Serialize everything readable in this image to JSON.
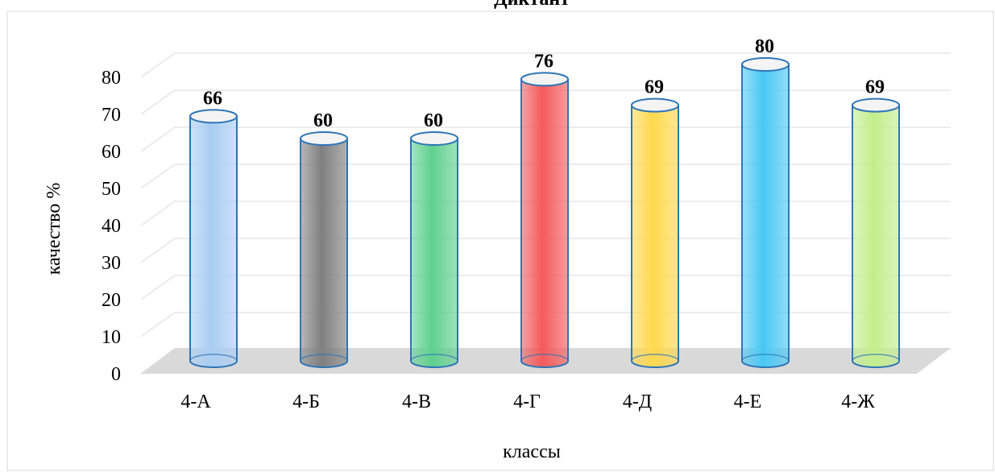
{
  "chart_data": {
    "type": "bar",
    "style": "3d-cylinder",
    "title": "Диктант",
    "xlabel": "классы",
    "ylabel": "качество %",
    "categories": [
      "4-А",
      "4-Б",
      "4-В",
      "4-Г",
      "4-Д",
      "4-Е",
      "4-Ж"
    ],
    "values": [
      66,
      60,
      60,
      76,
      69,
      80,
      69
    ],
    "data_labels": [
      "66",
      "60",
      "60",
      "76",
      "69",
      "80",
      "69"
    ],
    "colors": [
      "#a9cdf3",
      "#7f7f7f",
      "#5fd08e",
      "#f45a5a",
      "#ffd84d",
      "#48c8f5",
      "#c3ee8c"
    ],
    "ylim": [
      0,
      80
    ],
    "yticks": [
      "0",
      "10",
      "20",
      "30",
      "40",
      "50",
      "60",
      "70",
      "80"
    ],
    "grid": true,
    "legend": "none"
  }
}
